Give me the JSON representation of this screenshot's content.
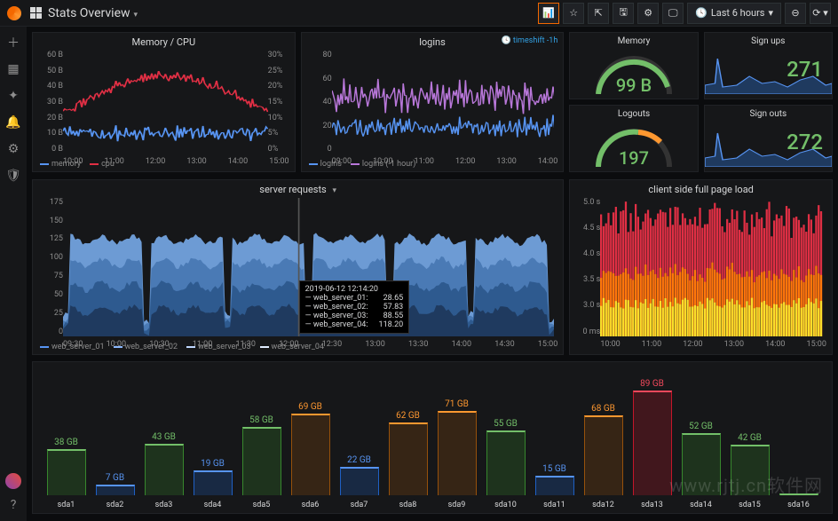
{
  "header": {
    "title": "Stats Overview",
    "time_label": "Last 6 hours"
  },
  "panels": {
    "memory_cpu": {
      "title": "Memory / CPU",
      "y_left": [
        "60 B",
        "50 B",
        "40 B",
        "30 B",
        "20 B",
        "10 B",
        "0 B"
      ],
      "y_right": [
        "30%",
        "25%",
        "20%",
        "15%",
        "10%",
        "5%",
        "0%"
      ],
      "x": [
        "10:00",
        "11:00",
        "12:00",
        "13:00",
        "14:00",
        "15:00"
      ],
      "legend": [
        {
          "label": "memory",
          "color": "#5794f2"
        },
        {
          "label": "cpu",
          "color": "#e02f44"
        }
      ]
    },
    "logins": {
      "title": "logins",
      "timeshift": "timeshift -1h",
      "y": [
        "80",
        "60",
        "40",
        "20",
        "0"
      ],
      "x": [
        "09:00",
        "10:00",
        "11:00",
        "12:00",
        "13:00",
        "14:00"
      ],
      "legend": [
        {
          "label": "logins",
          "color": "#5794f2"
        },
        {
          "label": "logins (-1 hour)",
          "color": "#b877d9"
        }
      ]
    },
    "memory_gauge": {
      "title": "Memory",
      "value": "99 B"
    },
    "logouts_gauge": {
      "title": "Logouts",
      "value": "197"
    },
    "signups": {
      "title": "Sign ups",
      "value": "271"
    },
    "signouts": {
      "title": "Sign outs",
      "value": "272"
    },
    "server_requests": {
      "title": "server requests",
      "y": [
        "175",
        "150",
        "125",
        "100",
        "75",
        "50",
        "25",
        "0"
      ],
      "x": [
        "09:30",
        "10:00",
        "10:30",
        "11:00",
        "11:30",
        "12:00",
        "12:30",
        "13:00",
        "13:30",
        "14:00",
        "14:30",
        "15:00"
      ],
      "legend": [
        {
          "label": "web_server_01",
          "color": "#5794f2"
        },
        {
          "label": "web_server_02",
          "color": "#8ab8ff"
        },
        {
          "label": "web_server_03",
          "color": "#c0d8ff"
        },
        {
          "label": "web_server_04",
          "color": "#e0ecff"
        }
      ],
      "tooltip": {
        "time": "2019-06-12 12:14:20",
        "rows": [
          {
            "label": "web_server_01:",
            "value": "28.65"
          },
          {
            "label": "web_server_02:",
            "value": "57.83"
          },
          {
            "label": "web_server_03:",
            "value": "88.55"
          },
          {
            "label": "web_server_04:",
            "value": "118.20"
          }
        ]
      }
    },
    "client_load": {
      "title": "client side full page load",
      "y": [
        "5.0 s",
        "4.5 s",
        "4.0 s",
        "3.5 s",
        "3.0 s",
        "0 ms"
      ],
      "x": [
        "10:00",
        "11:00",
        "12:00",
        "13:00",
        "14:00",
        "15:00"
      ],
      "colors": [
        "#e02f44",
        "#ff780a",
        "#fade2a"
      ]
    },
    "disk_bars": {
      "items": [
        {
          "label": "sda1",
          "value": "38 GB",
          "h": 52,
          "color": "#37872d",
          "text": "#73bf69"
        },
        {
          "label": "sda2",
          "value": "7 GB",
          "h": 12,
          "color": "#1f60c4",
          "text": "#5794f2"
        },
        {
          "label": "sda3",
          "value": "43 GB",
          "h": 58,
          "color": "#37872d",
          "text": "#73bf69"
        },
        {
          "label": "sda4",
          "value": "19 GB",
          "h": 28,
          "color": "#1f60c4",
          "text": "#5794f2"
        },
        {
          "label": "sda5",
          "value": "58 GB",
          "h": 77,
          "color": "#37872d",
          "text": "#73bf69"
        },
        {
          "label": "sda6",
          "value": "69 GB",
          "h": 92,
          "color": "#96510b",
          "text": "#ff9830"
        },
        {
          "label": "sda7",
          "value": "22 GB",
          "h": 32,
          "color": "#1f60c4",
          "text": "#5794f2"
        },
        {
          "label": "sda8",
          "value": "62 GB",
          "h": 82,
          "color": "#96510b",
          "text": "#ff9830"
        },
        {
          "label": "sda9",
          "value": "71 GB",
          "h": 95,
          "color": "#96510b",
          "text": "#ff9830"
        },
        {
          "label": "sda10",
          "value": "55 GB",
          "h": 73,
          "color": "#37872d",
          "text": "#73bf69"
        },
        {
          "label": "sda11",
          "value": "15 GB",
          "h": 22,
          "color": "#1f60c4",
          "text": "#5794f2"
        },
        {
          "label": "sda12",
          "value": "68 GB",
          "h": 90,
          "color": "#96510b",
          "text": "#ff9830"
        },
        {
          "label": "sda13",
          "value": "89 GB",
          "h": 118,
          "color": "#c4162a",
          "text": "#f2495c"
        },
        {
          "label": "sda14",
          "value": "52 GB",
          "h": 70,
          "color": "#37872d",
          "text": "#73bf69"
        },
        {
          "label": "sda15",
          "value": "42 GB",
          "h": 57,
          "color": "#37872d",
          "text": "#73bf69"
        },
        {
          "label": "sda16",
          "value": "",
          "h": 0,
          "color": "#37872d",
          "text": "#73bf69"
        }
      ]
    }
  },
  "watermark": "www.rjtj.cn软件网"
}
